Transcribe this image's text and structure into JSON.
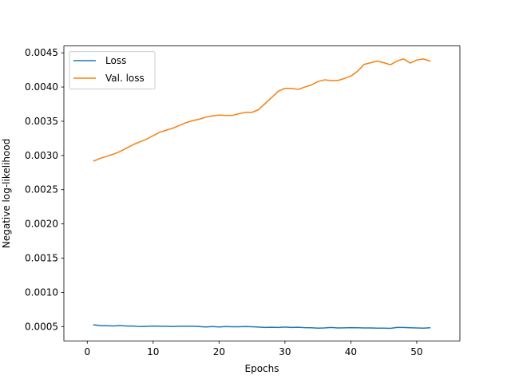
{
  "chart_data": {
    "type": "line",
    "title": "",
    "xlabel": "Epochs",
    "ylabel": "Negative log-likelihood",
    "xlim": [
      -3.55,
      56.55
    ],
    "ylim": [
      0.0002915,
      0.0046
    ],
    "xticks": [
      0,
      10,
      20,
      30,
      40,
      50
    ],
    "xtick_labels": [
      "0",
      "10",
      "20",
      "30",
      "40",
      "50"
    ],
    "yticks": [
      0.0005,
      0.001,
      0.0015,
      0.002,
      0.0025,
      0.003,
      0.0035,
      0.004,
      0.0045
    ],
    "ytick_labels": [
      "0.0005",
      "0.0010",
      "0.0015",
      "0.0020",
      "0.0025",
      "0.0030",
      "0.0035",
      "0.0040",
      "0.0045"
    ],
    "grid": false,
    "legend_position": "top-left",
    "x": [
      1,
      2,
      3,
      4,
      5,
      6,
      7,
      8,
      9,
      10,
      11,
      12,
      13,
      14,
      15,
      16,
      17,
      18,
      19,
      20,
      21,
      22,
      23,
      24,
      25,
      26,
      27,
      28,
      29,
      30,
      31,
      32,
      33,
      34,
      35,
      36,
      37,
      38,
      39,
      40,
      41,
      42,
      43,
      44,
      45,
      46,
      47,
      48,
      49,
      50,
      51,
      52
    ],
    "series": [
      {
        "name": "Loss",
        "color": "#1f77b4",
        "values": [
          0.000525,
          0.000515,
          0.000512,
          0.00051,
          0.000515,
          0.000508,
          0.000508,
          0.0005,
          0.000503,
          0.000508,
          0.000505,
          0.000505,
          0.0005,
          0.000505,
          0.000505,
          0.000505,
          0.0005,
          0.000495,
          0.0005,
          0.000495,
          0.0005,
          0.000498,
          0.000498,
          0.0005,
          0.000498,
          0.000493,
          0.000488,
          0.00049,
          0.000488,
          0.000493,
          0.000488,
          0.00049,
          0.000485,
          0.000483,
          0.000478,
          0.00048,
          0.000488,
          0.00048,
          0.000482,
          0.000485,
          0.000483,
          0.00048,
          0.00048,
          0.000478,
          0.000478,
          0.000475,
          0.000488,
          0.000487,
          0.000483,
          0.00048,
          0.000478,
          0.000483
        ]
      },
      {
        "name": "Val. loss",
        "color": "#ff7f0e",
        "values": [
          0.00292,
          0.00296,
          0.00299,
          0.00302,
          0.00306,
          0.00311,
          0.00316,
          0.0032,
          0.00324,
          0.00329,
          0.00334,
          0.00337,
          0.0034,
          0.00344,
          0.00348,
          0.00351,
          0.00353,
          0.00356,
          0.00358,
          0.00359,
          0.003585,
          0.003585,
          0.00361,
          0.00363,
          0.00363,
          0.00367,
          0.00376,
          0.00385,
          0.00394,
          0.00398,
          0.00398,
          0.003965,
          0.004,
          0.00403,
          0.00408,
          0.004105,
          0.004095,
          0.004095,
          0.004125,
          0.00416,
          0.00423,
          0.00433,
          0.004355,
          0.00438,
          0.004355,
          0.004325,
          0.00438,
          0.00441,
          0.00435,
          0.004395,
          0.00441,
          0.00438
        ]
      }
    ]
  }
}
